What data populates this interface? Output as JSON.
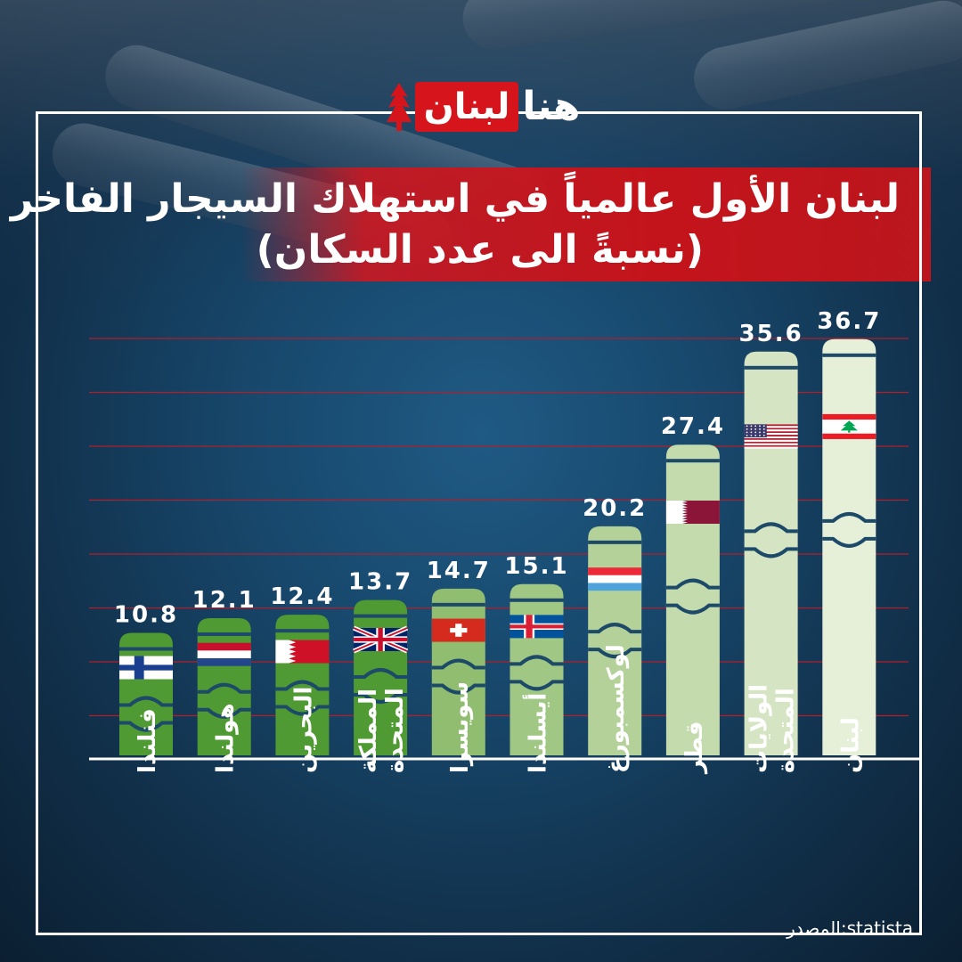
{
  "logo": {
    "red_text": "لبنان",
    "white_text": "هنا"
  },
  "title_line1": "لبنان الأول عالمياً في استهلاك السيجار الفاخر",
  "title_line2": "(نسبةً الى عدد السكان)",
  "source": "المصدر:statista",
  "colors": {
    "accent_red": "#d6141c",
    "bar_dark_green": "#4f9a33",
    "bar_light_green": "#e6efd8",
    "gridline": "#b21e2a"
  },
  "chart_data": {
    "type": "bar",
    "title": "لبنان الأول عالمياً في استهلاك السيجار الفاخر (نسبةً الى عدد السكان)",
    "xlabel": "",
    "ylabel": "",
    "categories": [
      "فنلندا",
      "هولندا",
      "البحرين",
      "المملكة المتحدة",
      "سويسرا",
      "أيسلندا",
      "لوكسمبورغ",
      "قطر",
      "الولايات المتحدة",
      "لبنان"
    ],
    "values": [
      10.8,
      12.1,
      12.4,
      13.7,
      14.7,
      15.1,
      20.2,
      27.4,
      35.6,
      36.7
    ],
    "value_labels": [
      "10.8",
      "12.1",
      "12.4",
      "13.7",
      "14.7",
      "15.1",
      "20.2",
      "27.4",
      "35.6",
      "36.7"
    ],
    "flags": [
      "finland-flag",
      "netherlands-flag",
      "bahrain-flag",
      "uk-flag",
      "switzerland-flag",
      "iceland-flag",
      "luxembourg-flag",
      "qatar-flag",
      "usa-flag",
      "lebanon-flag"
    ],
    "grid": true,
    "legend": "none"
  }
}
